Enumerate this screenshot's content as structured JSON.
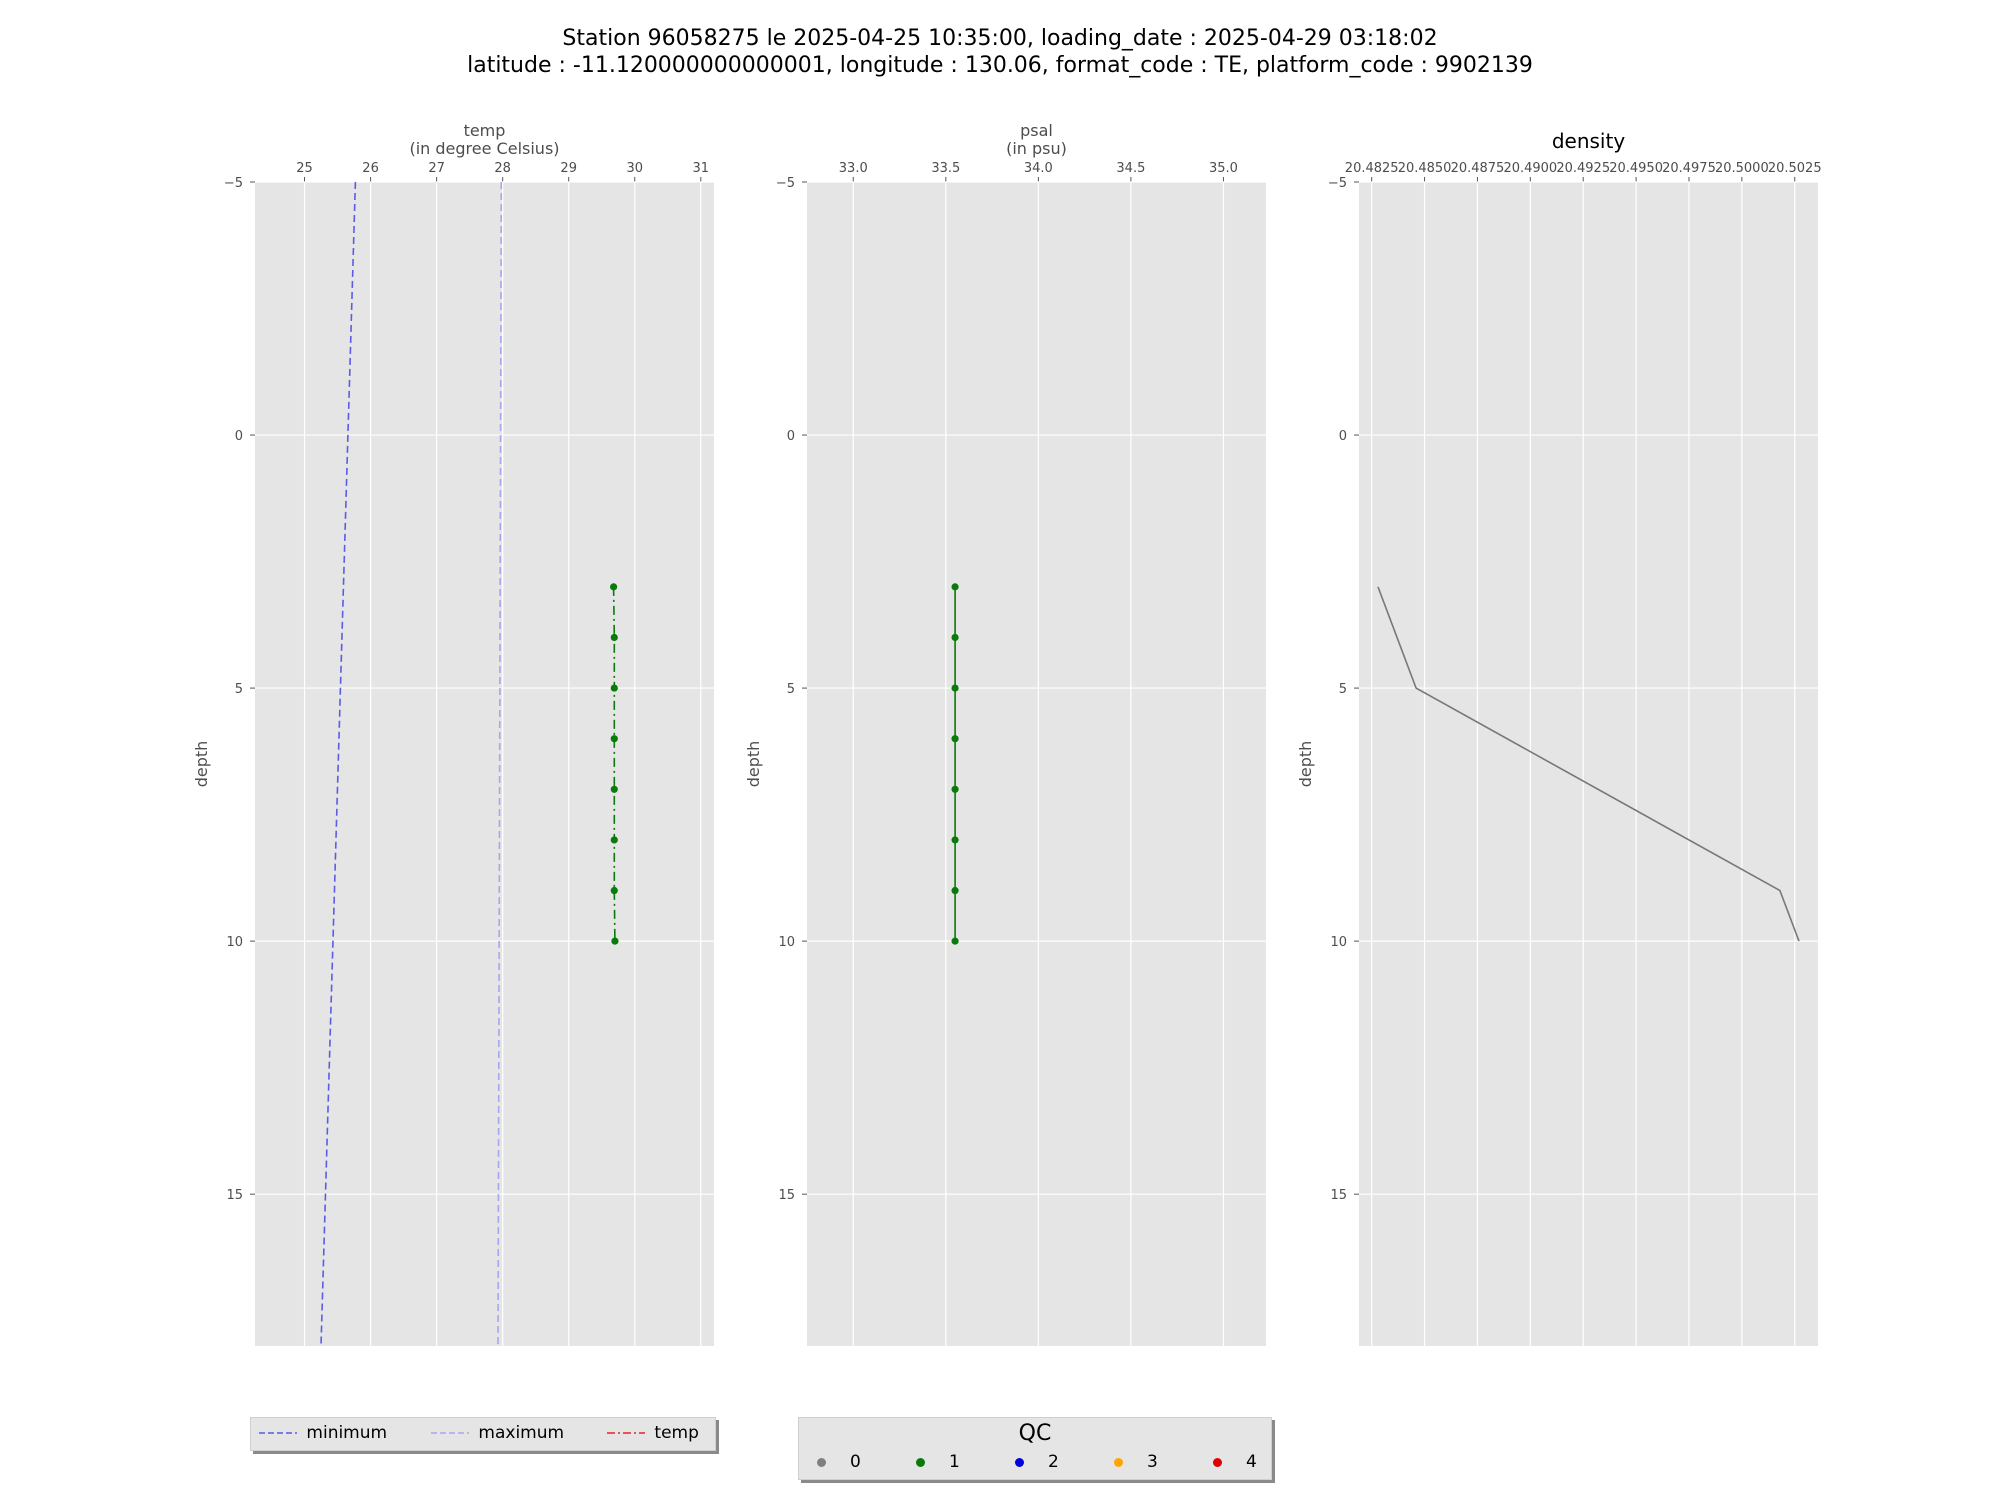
{
  "title": {
    "line1": "Station 96058275 le 2025-04-25 10:35:00, loading_date : 2025-04-29 03:18:02",
    "line2": "latitude : -11.120000000000001, longitude : 130.06, format_code : TE, platform_code : 9902139"
  },
  "colors": {
    "panel_bg": "#e5e5e5",
    "grid": "#ffffff",
    "minimum": "#5b5be8",
    "maximum": "#a6a6ee",
    "temp_line": "#e8202a",
    "qc1_green": "#0a7a0a",
    "density_line": "#777777"
  },
  "chart_data": [
    {
      "type": "line",
      "xlabel": "temp\n(in degree Celsius)",
      "ylabel": "depth",
      "xlim": [
        24.25,
        31.2
      ],
      "ylim": [
        18,
        -5
      ],
      "xticks": [
        25,
        26,
        27,
        28,
        29,
        30,
        31
      ],
      "yticks": [
        -5,
        0,
        5,
        10,
        15
      ],
      "grid": true,
      "series": [
        {
          "name": "minimum",
          "style": "dashed",
          "color": "#5b5be8",
          "x": [
            25.77,
            25.25
          ],
          "y": [
            -5,
            18
          ]
        },
        {
          "name": "maximum",
          "style": "dashed",
          "color": "#a6a6ee",
          "x": [
            27.98,
            27.93
          ],
          "y": [
            -5,
            18
          ]
        },
        {
          "name": "temp",
          "style": "dashdot",
          "color": "#0a7a0a",
          "markers": true,
          "x": [
            29.68,
            29.69,
            29.69,
            29.69,
            29.69,
            29.69,
            29.69,
            29.7
          ],
          "y": [
            3,
            4,
            5,
            6,
            7,
            8,
            9,
            10
          ]
        }
      ]
    },
    {
      "type": "line",
      "xlabel": "psal\n(in psu)",
      "ylabel": "depth",
      "xlim": [
        32.75,
        35.23
      ],
      "ylim": [
        18,
        -5
      ],
      "xticks": [
        "33.0",
        "33.5",
        "34.0",
        "34.5",
        "35.0"
      ],
      "yticks": [
        -5,
        0,
        5,
        10,
        15
      ],
      "grid": true,
      "series": [
        {
          "name": "psal",
          "style": "solid",
          "color": "#0a7a0a",
          "markers": true,
          "x": [
            33.55,
            33.55,
            33.55,
            33.55,
            33.55,
            33.55,
            33.55,
            33.55
          ],
          "y": [
            3,
            4,
            5,
            6,
            7,
            8,
            9,
            10
          ]
        }
      ]
    },
    {
      "type": "line",
      "title": "density",
      "ylabel": "depth",
      "xlim": [
        20.4819,
        20.5036
      ],
      "ylim": [
        18,
        -5
      ],
      "xticks": [
        "20.4825",
        "20.4850",
        "20.4875",
        "20.4900",
        "20.4925",
        "20.4950",
        "20.4975",
        "20.5000",
        "20.5025"
      ],
      "yticks": [
        -5,
        0,
        5,
        10,
        15
      ],
      "grid": true,
      "series": [
        {
          "name": "density",
          "style": "solid",
          "color": "#777777",
          "markers": false,
          "x": [
            20.4828,
            20.4846,
            20.5018,
            20.5027
          ],
          "y": [
            3,
            5,
            9,
            10
          ]
        }
      ]
    }
  ],
  "legend_lines": {
    "items": [
      {
        "label": "minimum",
        "color": "#5b5be8",
        "style": "dashed"
      },
      {
        "label": "maximum",
        "color": "#a6a6ee",
        "style": "dashed"
      },
      {
        "label": "temp",
        "color": "#e8202a",
        "style": "dashdot"
      }
    ]
  },
  "legend_qc": {
    "title": "QC",
    "items": [
      {
        "label": "0",
        "color": "#808080"
      },
      {
        "label": "1",
        "color": "#0a7a0a"
      },
      {
        "label": "2",
        "color": "#0000e0"
      },
      {
        "label": "3",
        "color": "#ffa500"
      },
      {
        "label": "4",
        "color": "#e00000"
      }
    ]
  }
}
